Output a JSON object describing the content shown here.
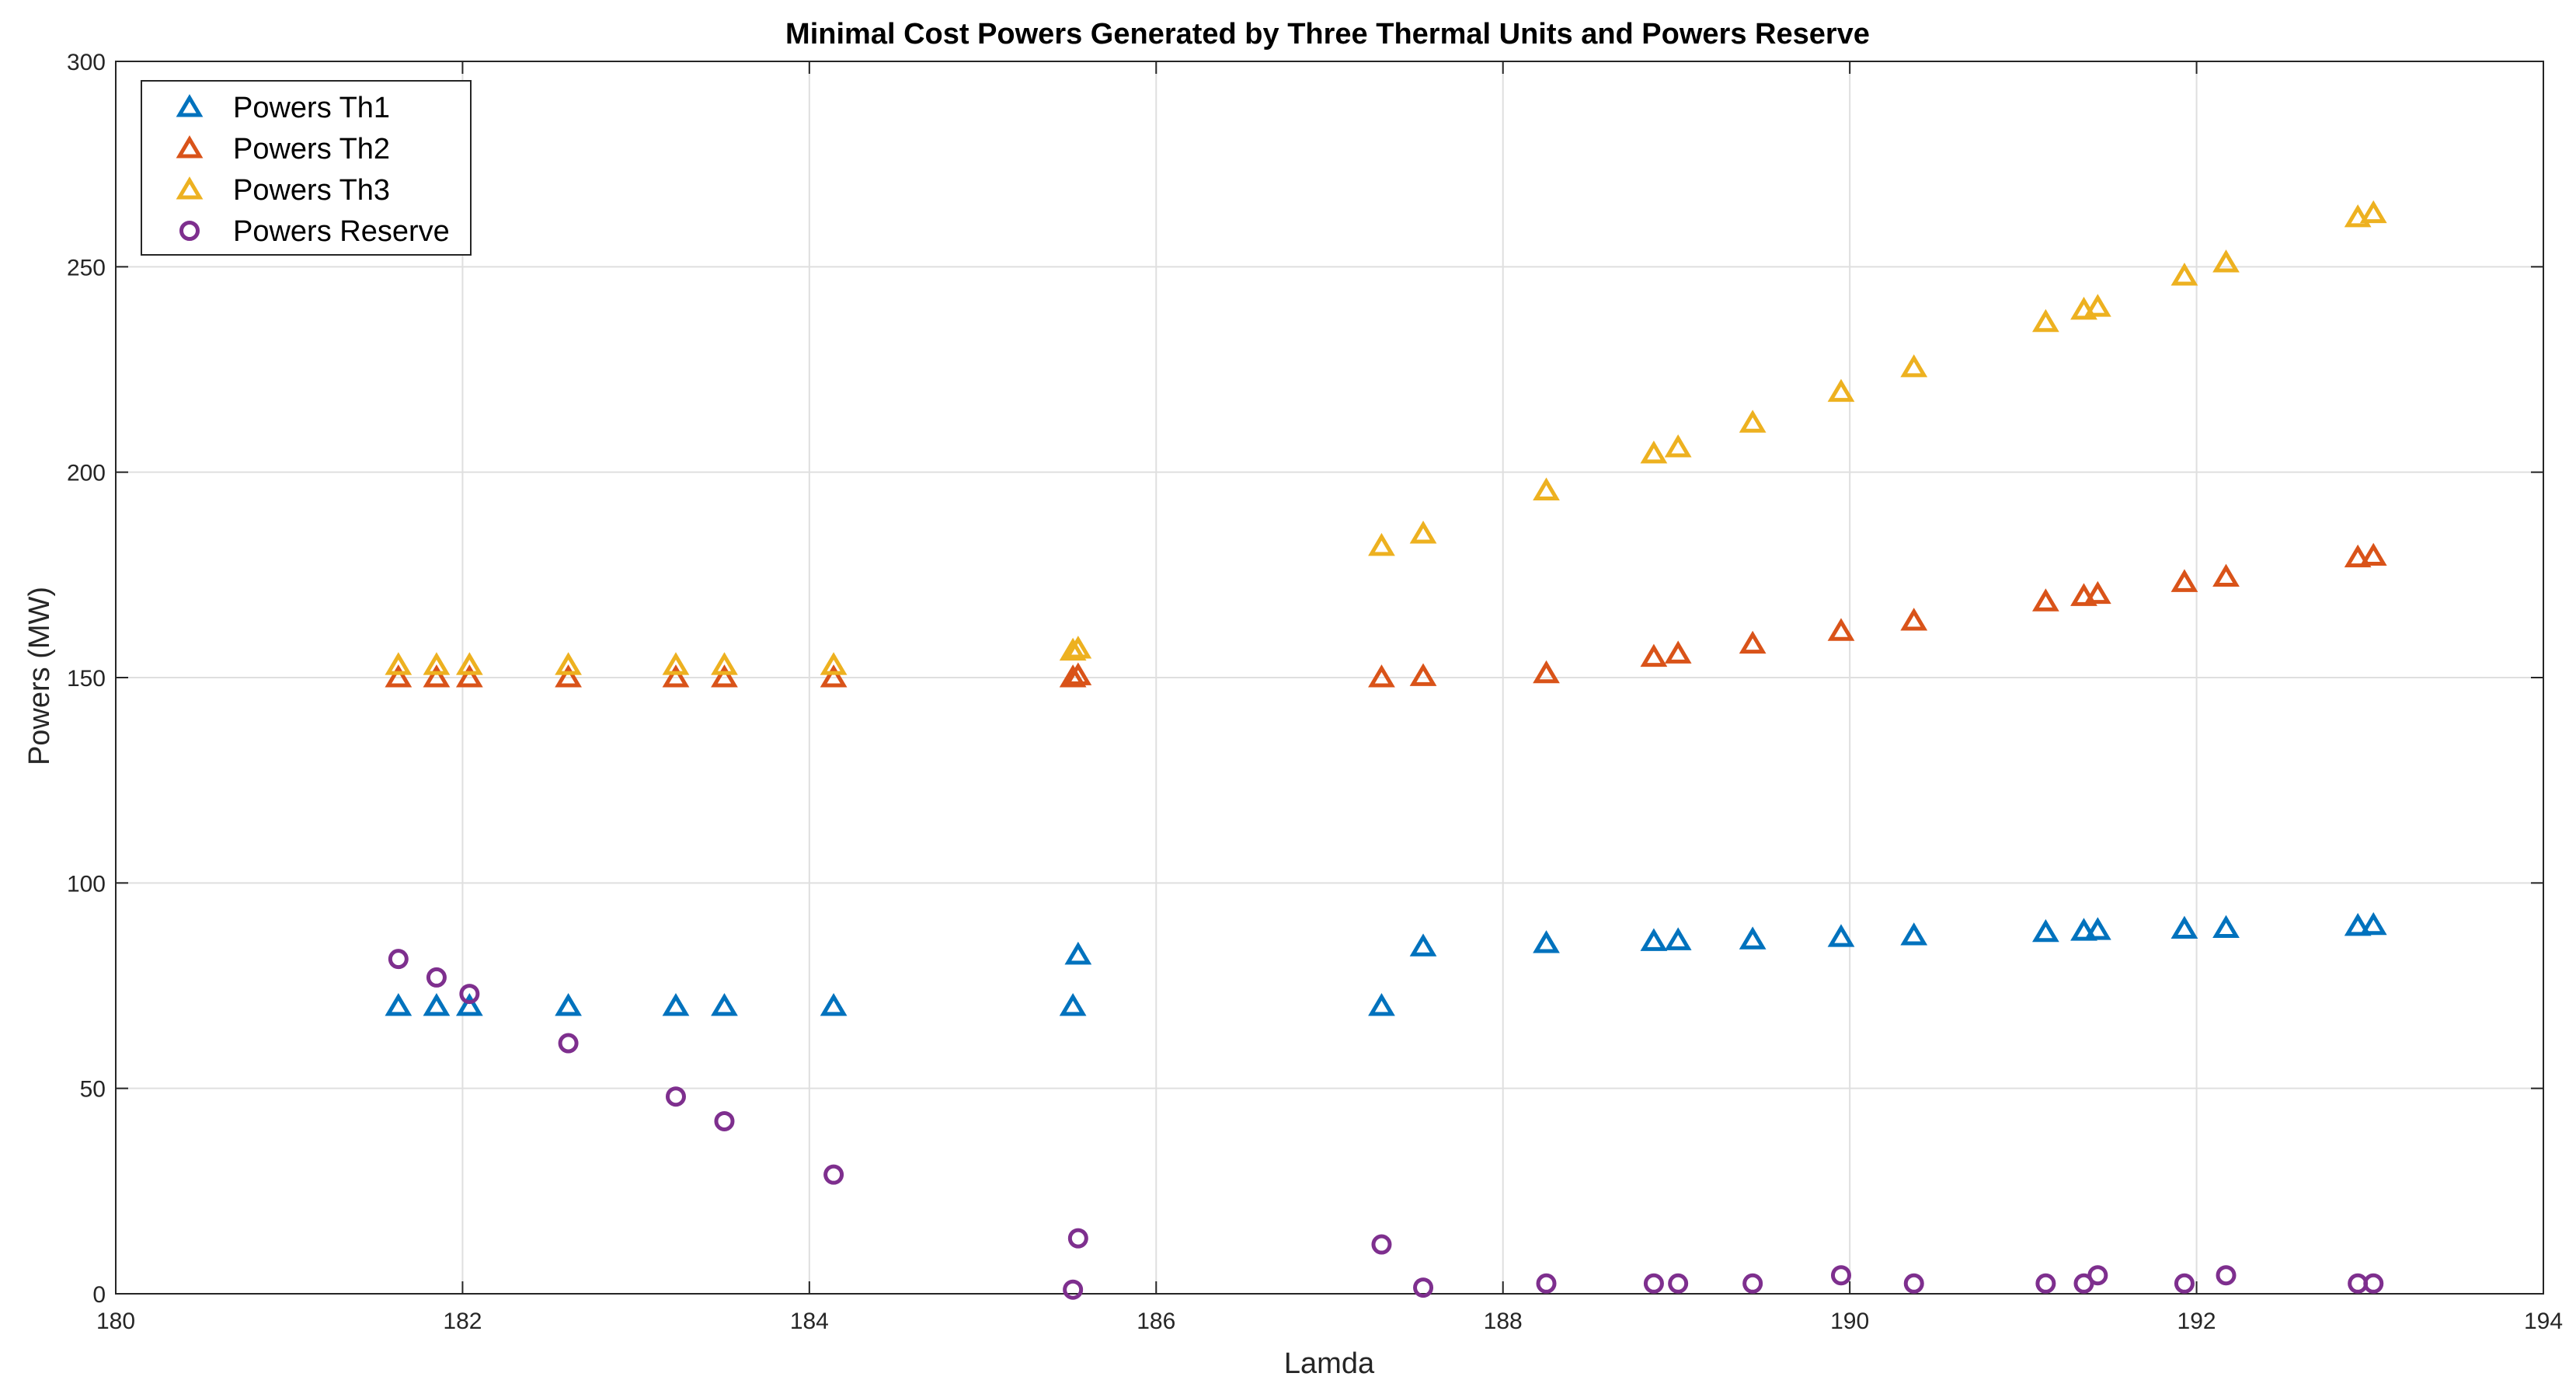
{
  "chart_data": {
    "type": "scatter",
    "title": "Minimal Cost Powers Generated by Three Thermal Units and Powers Reserve",
    "xlabel": "Lamda",
    "ylabel": "Powers (MW)",
    "xlim": [
      180,
      194
    ],
    "ylim": [
      0,
      300
    ],
    "xticks": [
      180,
      182,
      184,
      186,
      188,
      190,
      192,
      194
    ],
    "yticks": [
      0,
      50,
      100,
      150,
      200,
      250,
      300
    ],
    "xtick_labels": [
      "180",
      "182",
      "184",
      "186",
      "188",
      "190",
      "192",
      "194"
    ],
    "ytick_labels": [
      "0",
      "50",
      "100",
      "150",
      "200",
      "250",
      "300"
    ],
    "grid": true,
    "legend_position": "top-left",
    "series": [
      {
        "name": "Powers Th1",
        "marker": "triangle",
        "color": "#0072BD",
        "x": [
          181.63,
          181.85,
          182.04,
          182.61,
          183.23,
          183.51,
          184.14,
          185.52,
          185.55,
          187.3,
          187.54,
          188.25,
          188.87,
          189.01,
          189.44,
          189.95,
          190.37,
          191.13,
          191.35,
          191.43,
          191.93,
          192.17,
          192.93,
          193.02
        ],
        "y": [
          70,
          70,
          70,
          70,
          70,
          70,
          70,
          70,
          82.5,
          70,
          84.5,
          85.3,
          85.8,
          86,
          86.2,
          86.8,
          87.2,
          88,
          88.3,
          88.5,
          88.8,
          89,
          89.5,
          89.7
        ]
      },
      {
        "name": "Powers Th2",
        "marker": "triangle",
        "color": "#D95319",
        "x": [
          181.63,
          181.85,
          182.04,
          182.61,
          183.23,
          183.51,
          184.14,
          185.52,
          185.55,
          187.3,
          187.54,
          188.25,
          188.87,
          189.01,
          189.44,
          189.95,
          190.37,
          191.13,
          191.35,
          191.43,
          191.93,
          192.17,
          192.93,
          193.02
        ],
        "y": [
          150,
          150,
          150,
          150,
          150,
          150,
          150,
          150,
          150.5,
          150,
          150.3,
          151,
          155,
          155.8,
          158.2,
          161.3,
          163.8,
          168.5,
          169.8,
          170.3,
          173.2,
          174.5,
          179.2,
          179.6
        ]
      },
      {
        "name": "Powers Th3",
        "marker": "triangle",
        "color": "#EDB120",
        "x": [
          181.63,
          181.85,
          182.04,
          182.61,
          183.23,
          183.51,
          184.14,
          185.52,
          185.55,
          187.3,
          187.54,
          188.25,
          188.87,
          189.01,
          189.44,
          189.95,
          190.37,
          191.13,
          191.35,
          191.43,
          191.93,
          192.17,
          192.93,
          193.02
        ],
        "y": [
          153,
          153,
          153,
          153,
          153,
          153,
          153,
          156.5,
          157,
          182,
          185,
          195.5,
          204.5,
          206,
          212,
          219.5,
          225.5,
          236.5,
          239.5,
          240.2,
          247.8,
          251,
          262,
          263
        ]
      },
      {
        "name": "Powers Reserve",
        "marker": "circle",
        "color": "#7E2F8E",
        "x": [
          181.63,
          181.85,
          182.04,
          182.61,
          183.23,
          183.51,
          184.14,
          185.52,
          185.55,
          187.3,
          187.54,
          188.25,
          188.87,
          189.01,
          189.44,
          189.95,
          190.37,
          191.13,
          191.35,
          191.43,
          191.93,
          192.17,
          192.93,
          193.02
        ],
        "y": [
          81.5,
          77,
          73,
          61,
          48,
          42,
          29,
          1,
          13.5,
          12,
          1.5,
          2.5,
          2.5,
          2.5,
          2.5,
          4.5,
          2.5,
          2.5,
          2.5,
          4.5,
          2.5,
          4.5,
          2.5,
          2.5
        ]
      }
    ]
  }
}
